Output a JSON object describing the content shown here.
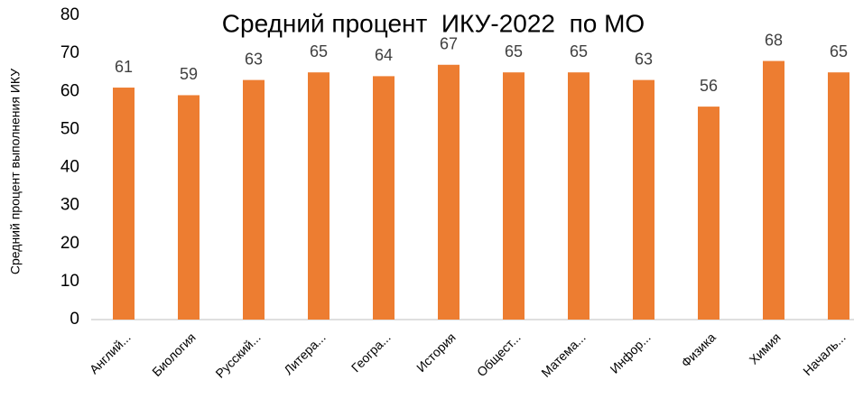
{
  "chart_data": {
    "type": "bar",
    "title": "Средний процент  ИКУ-2022  по МО",
    "y_label": "Средний процент выполнения ИКУ",
    "categories": [
      "Англий...",
      "Биология",
      "Русский...",
      "Литера...",
      "Геогра...",
      "История",
      "Общест...",
      "Матема...",
      "Инфор...",
      "Физика",
      "Химия",
      "Началь..."
    ],
    "values": [
      61,
      59,
      63,
      65,
      64,
      67,
      65,
      65,
      63,
      56,
      68,
      65
    ],
    "color": "#ed7d31",
    "ylim": [
      0,
      80
    ],
    "yticks": [
      0,
      10,
      20,
      30,
      40,
      50,
      60,
      70,
      80
    ],
    "grid": false
  }
}
